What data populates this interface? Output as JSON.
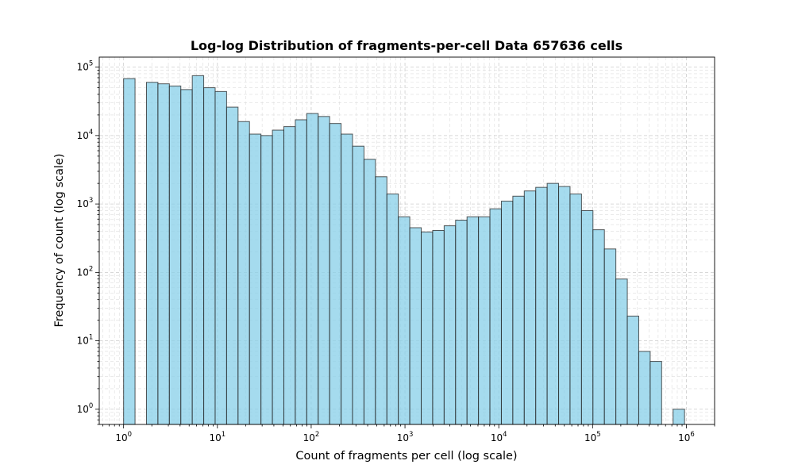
{
  "chart_data": {
    "type": "bar",
    "title": "Log-log Distribution of fragments-per-cell Data 657636 cells",
    "xlabel": "Count of fragments per cell (log scale)",
    "ylabel": "Frequency of count (log scale)",
    "x_scale": "log",
    "y_scale": "log",
    "xlim": [
      0.55,
      2000000
    ],
    "ylim": [
      0.6,
      140000
    ],
    "grid": true,
    "x_ticks": [
      {
        "base": "10",
        "exp": "0",
        "value": 1
      },
      {
        "base": "10",
        "exp": "1",
        "value": 10
      },
      {
        "base": "10",
        "exp": "2",
        "value": 100
      },
      {
        "base": "10",
        "exp": "3",
        "value": 1000
      },
      {
        "base": "10",
        "exp": "4",
        "value": 10000
      },
      {
        "base": "10",
        "exp": "5",
        "value": 100000
      },
      {
        "base": "10",
        "exp": "6",
        "value": 1000000
      }
    ],
    "y_ticks": [
      {
        "base": "10",
        "exp": "0",
        "value": 1
      },
      {
        "base": "10",
        "exp": "1",
        "value": 10
      },
      {
        "base": "10",
        "exp": "2",
        "value": 100
      },
      {
        "base": "10",
        "exp": "3",
        "value": 1000
      },
      {
        "base": "10",
        "exp": "4",
        "value": 10000
      },
      {
        "base": "10",
        "exp": "5",
        "value": 100000
      }
    ],
    "bin_edges": [
      1,
      1.324,
      1.754,
      2.323,
      3.077,
      4.075,
      5.397,
      7.149,
      9.469,
      12.54,
      16.61,
      22.0,
      29.14,
      38.59,
      51.12,
      67.7,
      89.68,
      118.8,
      157.3,
      208.4,
      276.0,
      365.6,
      484.2,
      641.4,
      849.5,
      1125,
      1490,
      1974,
      2615,
      3463,
      4587,
      6076,
      8047,
      10660,
      14120,
      18700,
      24770,
      32800,
      43450,
      57550,
      76230,
      100960,
      133700,
      177100,
      234600,
      310700,
      411600,
      545100,
      722000,
      956300
    ],
    "values": [
      68000,
      0,
      60000,
      57000,
      53000,
      47000,
      75000,
      50000,
      44000,
      26000,
      16000,
      10500,
      10000,
      12000,
      13500,
      17000,
      21000,
      19000,
      15000,
      10500,
      7000,
      4500,
      2500,
      1400,
      650,
      450,
      390,
      410,
      480,
      580,
      650,
      650,
      850,
      1100,
      1300,
      1550,
      1750,
      2000,
      1800,
      1400,
      800,
      420,
      220,
      80,
      23,
      7,
      5,
      0,
      1
    ]
  }
}
